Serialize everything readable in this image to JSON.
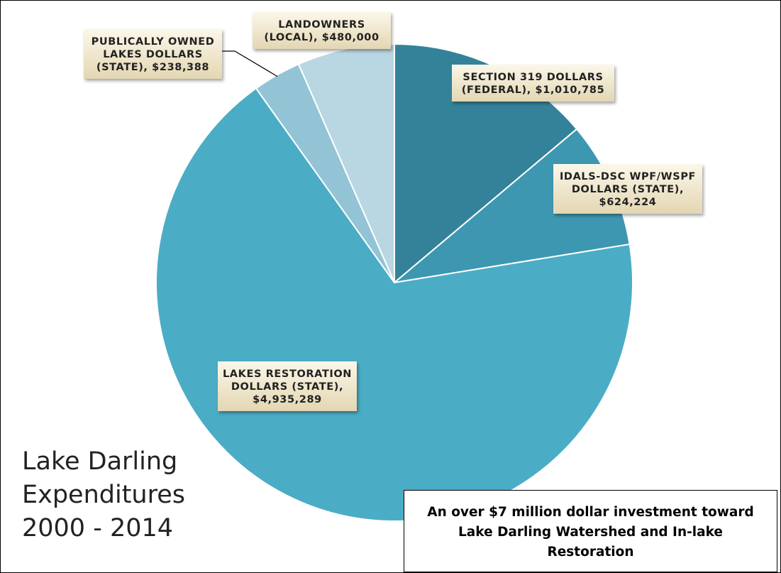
{
  "chart_data": {
    "type": "pie",
    "title_lines": [
      "Lake Darling",
      "Expenditures",
      "2000 - 2014"
    ],
    "slices": [
      {
        "label_lines": [
          "SECTION 319 DOLLARS",
          "(FEDERAL), $1,010,785"
        ],
        "value": 1010785,
        "color": "#34829A"
      },
      {
        "label_lines": [
          "IDALS-DSC WPF/WSPF",
          "DOLLARS (STATE),",
          "$624,224"
        ],
        "value": 624224,
        "color": "#3D97B1"
      },
      {
        "label_lines": [
          "LAKES RESTORATION",
          "DOLLARS (STATE),",
          "$4,935,289"
        ],
        "value": 4935289,
        "color": "#4BACC6"
      },
      {
        "label_lines": [
          "PUBLICALLY OWNED",
          "LAKES DOLLARS",
          "(STATE), $238,388"
        ],
        "value": 238388,
        "color": "#93C4D5"
      },
      {
        "label_lines": [
          "LANDOWNERS",
          "(LOCAL), $480,000"
        ],
        "value": 480000,
        "color": "#B9D7E3"
      }
    ],
    "start_angle_deg": 0,
    "direction": "clockwise",
    "legend": "none",
    "data_labels": "callout-boxes"
  },
  "annotation": {
    "text": "An over $7 million dollar investment toward Lake Darling Watershed and In-lake Restoration"
  }
}
